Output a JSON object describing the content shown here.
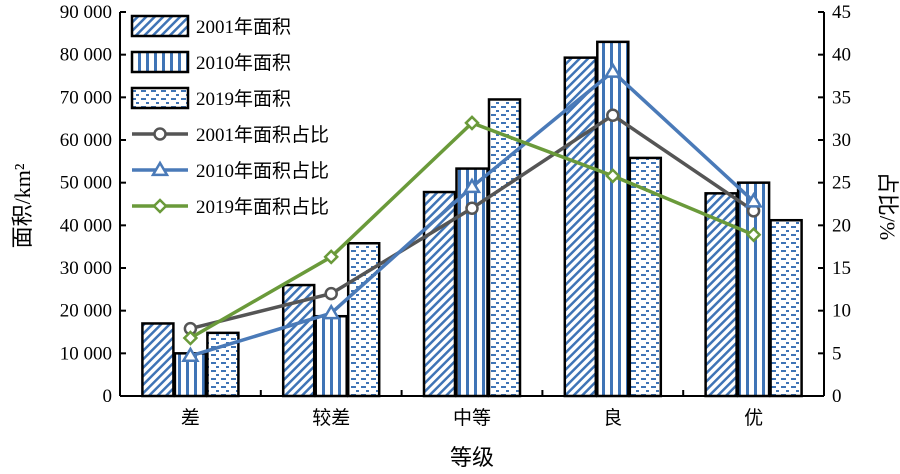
{
  "chart_data": {
    "type": "bar",
    "title": "",
    "xlabel": "等级",
    "ylabel": "面积/km²",
    "y2label": "占比/%",
    "categories": [
      "差",
      "较差",
      "中等",
      "良",
      "优"
    ],
    "ylim": [
      0,
      90000
    ],
    "y_ticks": [
      "0",
      "10 000",
      "20 000",
      "30 000",
      "40 000",
      "50 000",
      "60 000",
      "70 000",
      "80 000",
      "90 000"
    ],
    "y2lim": [
      0,
      45
    ],
    "y2_ticks": [
      "0",
      "5",
      "10",
      "15",
      "20",
      "25",
      "30",
      "35",
      "40",
      "45"
    ],
    "grid": false,
    "legend_position": "top-left",
    "series": [
      {
        "name": "2001年面积",
        "kind": "bar",
        "pattern": "diagonal",
        "values": [
          17000,
          26000,
          47800,
          79300,
          47500
        ]
      },
      {
        "name": "2010年面积",
        "kind": "bar",
        "pattern": "vertical",
        "values": [
          10000,
          18700,
          53300,
          83000,
          50000
        ]
      },
      {
        "name": "2019年面积",
        "kind": "bar",
        "pattern": "dashed",
        "values": [
          14800,
          35800,
          69500,
          55800,
          41200
        ]
      },
      {
        "name": "2001年面积占比",
        "kind": "line",
        "axis": "right",
        "color": "#555555",
        "marker": "circle",
        "values": [
          7.9,
          12.0,
          22.0,
          32.9,
          21.7
        ]
      },
      {
        "name": "2010年面积占比",
        "kind": "line",
        "axis": "right",
        "color": "#4a7ab8",
        "marker": "triangle",
        "values": [
          4.7,
          9.7,
          24.5,
          38.0,
          22.8
        ]
      },
      {
        "name": "2019年面积占比",
        "kind": "line",
        "axis": "right",
        "color": "#6a9a3a",
        "marker": "diamond",
        "values": [
          6.8,
          16.3,
          32.0,
          25.8,
          18.9
        ]
      }
    ],
    "colors": {
      "bar_fill": "#3f74b6",
      "bar_stroke": "#000000",
      "axis": "#000000"
    }
  }
}
